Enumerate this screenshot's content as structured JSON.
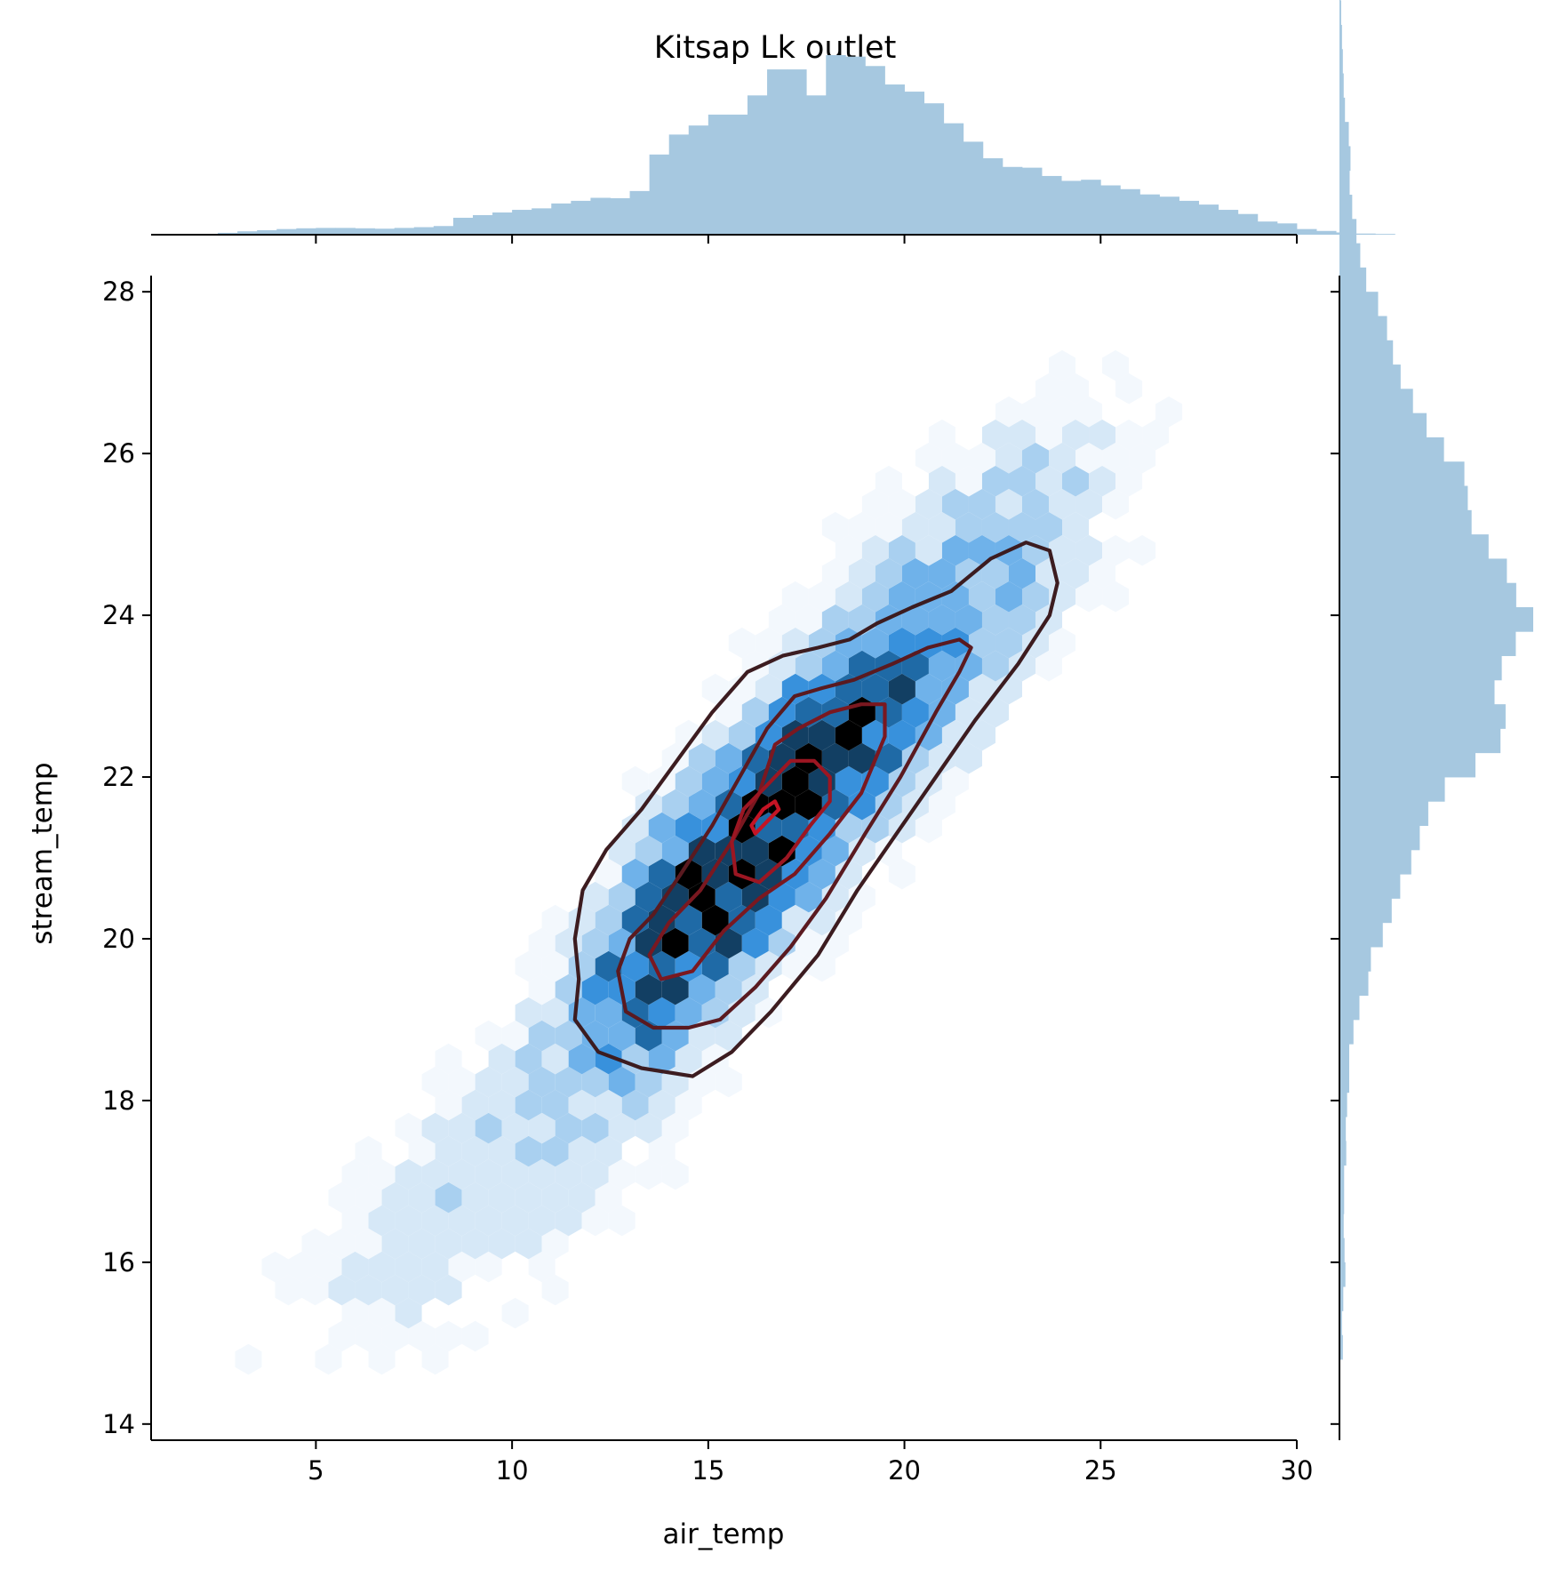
{
  "chart_data": {
    "type": "jointplot",
    "title": "Kitsap Lk outlet",
    "xlabel": "air_temp",
    "ylabel": "stream_temp",
    "xlim": [
      0.8,
      30
    ],
    "ylim": [
      13.8,
      28.2
    ],
    "xticks": [
      5,
      10,
      15,
      20,
      25,
      30
    ],
    "yticks": [
      14,
      16,
      18,
      20,
      22,
      24,
      26,
      28
    ],
    "grid": false,
    "legend": "none",
    "colors": {
      "marginal_hist": "#a6c8e0",
      "hexbin_scale": [
        "#f3f8fd",
        "#d6e8f7",
        "#a9d0f0",
        "#6fb2ea",
        "#3891dc",
        "#1f6aa6",
        "#123f63",
        "#000000"
      ],
      "kde_contours": [
        "#3c1c20",
        "#5a1a20",
        "#7a1820",
        "#9c1622",
        "#c41424"
      ],
      "axis": "#000000"
    },
    "hexbin": {
      "gridsize_x": 0.68,
      "weighted_clusters": [
        {
          "x": 16.4,
          "y": 21.4,
          "sx": 2.3,
          "sy": 1.3,
          "rho": 0.82,
          "weight": 1.0
        },
        {
          "x": 14.3,
          "y": 19.9,
          "sx": 1.4,
          "sy": 0.9,
          "rho": 0.6,
          "weight": 0.55
        },
        {
          "x": 19.5,
          "y": 23.0,
          "sx": 2.6,
          "sy": 1.3,
          "rho": 0.78,
          "weight": 0.35
        },
        {
          "x": 10.5,
          "y": 17.5,
          "sx": 3.3,
          "sy": 1.5,
          "rho": 0.8,
          "weight": 0.14
        },
        {
          "x": 22.0,
          "y": 25.2,
          "sx": 2.6,
          "sy": 1.1,
          "rho": 0.7,
          "weight": 0.09
        }
      ]
    },
    "kde_contours": [
      {
        "level": 1,
        "points": [
          [
            11.7,
            19.5
          ],
          [
            11.6,
            19.0
          ],
          [
            12.2,
            18.6
          ],
          [
            13.3,
            18.4
          ],
          [
            14.6,
            18.3
          ],
          [
            15.6,
            18.6
          ],
          [
            16.6,
            19.1
          ],
          [
            17.8,
            19.8
          ],
          [
            18.8,
            20.6
          ],
          [
            19.8,
            21.3
          ],
          [
            20.8,
            22.0
          ],
          [
            21.8,
            22.7
          ],
          [
            22.9,
            23.4
          ],
          [
            23.7,
            24.0
          ],
          [
            23.9,
            24.4
          ],
          [
            23.7,
            24.8
          ],
          [
            23.1,
            24.9
          ],
          [
            22.2,
            24.7
          ],
          [
            21.2,
            24.3
          ],
          [
            20.2,
            24.1
          ],
          [
            19.3,
            23.9
          ],
          [
            18.6,
            23.7
          ],
          [
            17.8,
            23.6
          ],
          [
            16.9,
            23.5
          ],
          [
            16.0,
            23.3
          ],
          [
            15.1,
            22.8
          ],
          [
            14.2,
            22.2
          ],
          [
            13.3,
            21.6
          ],
          [
            12.4,
            21.1
          ],
          [
            11.8,
            20.6
          ],
          [
            11.6,
            20.0
          ],
          [
            11.7,
            19.5
          ]
        ]
      },
      {
        "level": 2,
        "points": [
          [
            12.7,
            19.6
          ],
          [
            12.9,
            19.1
          ],
          [
            13.6,
            18.9
          ],
          [
            14.5,
            18.9
          ],
          [
            15.3,
            19.0
          ],
          [
            16.2,
            19.4
          ],
          [
            17.1,
            19.9
          ],
          [
            18.0,
            20.5
          ],
          [
            19.0,
            21.3
          ],
          [
            19.9,
            22.0
          ],
          [
            20.8,
            22.8
          ],
          [
            21.4,
            23.3
          ],
          [
            21.7,
            23.6
          ],
          [
            21.4,
            23.7
          ],
          [
            20.6,
            23.6
          ],
          [
            19.7,
            23.4
          ],
          [
            18.7,
            23.2
          ],
          [
            17.9,
            23.1
          ],
          [
            17.2,
            23.0
          ],
          [
            16.5,
            22.6
          ],
          [
            15.8,
            22.0
          ],
          [
            15.1,
            21.4
          ],
          [
            14.3,
            20.8
          ],
          [
            13.6,
            20.3
          ],
          [
            13.0,
            20.0
          ],
          [
            12.7,
            19.6
          ]
        ]
      },
      {
        "level": 3,
        "points": [
          [
            13.5,
            19.8
          ],
          [
            13.8,
            19.5
          ],
          [
            14.6,
            19.6
          ],
          [
            15.4,
            20.1
          ],
          [
            16.3,
            20.5
          ],
          [
            17.2,
            20.8
          ],
          [
            18.1,
            21.3
          ],
          [
            18.9,
            21.8
          ],
          [
            19.5,
            22.5
          ],
          [
            19.5,
            22.9
          ],
          [
            18.9,
            22.9
          ],
          [
            18.1,
            22.8
          ],
          [
            17.3,
            22.6
          ],
          [
            16.7,
            22.4
          ],
          [
            16.3,
            21.8
          ],
          [
            15.6,
            21.2
          ],
          [
            14.8,
            20.6
          ],
          [
            14.0,
            20.2
          ],
          [
            13.5,
            19.8
          ]
        ]
      },
      {
        "level": 4,
        "points": [
          [
            15.6,
            21.2
          ],
          [
            15.7,
            20.8
          ],
          [
            16.3,
            20.7
          ],
          [
            17.0,
            21.0
          ],
          [
            17.6,
            21.4
          ],
          [
            18.1,
            21.7
          ],
          [
            18.1,
            22.0
          ],
          [
            17.7,
            22.2
          ],
          [
            17.1,
            22.2
          ],
          [
            16.5,
            21.9
          ],
          [
            15.9,
            21.6
          ],
          [
            15.6,
            21.2
          ]
        ]
      },
      {
        "level": 5,
        "points": [
          [
            16.1,
            21.4
          ],
          [
            16.2,
            21.3
          ],
          [
            16.6,
            21.5
          ],
          [
            16.8,
            21.6
          ],
          [
            16.7,
            21.7
          ],
          [
            16.4,
            21.6
          ],
          [
            16.1,
            21.4
          ]
        ]
      }
    ],
    "marginal_x_hist": {
      "bin_edges_start": 2.5,
      "bin_width": 0.5,
      "counts": [
        0.5,
        0.9,
        1.2,
        1.5,
        1.7,
        1.8,
        1.8,
        1.7,
        1.6,
        1.8,
        2.0,
        2.3,
        4.5,
        5.2,
        5.9,
        6.6,
        7.0,
        8.3,
        9.0,
        9.8,
        9.7,
        11.6,
        21.3,
        26.6,
        29.0,
        31.9,
        31.9,
        37.0,
        43.9,
        43.9,
        37.0,
        47.7,
        47.3,
        44.8,
        39.9,
        38.0,
        34.9,
        29.6,
        24.7,
        20.3,
        18.0,
        17.8,
        15.6,
        14.3,
        14.6,
        13.1,
        12.1,
        10.7,
        10.1,
        9.0,
        8.0,
        6.6,
        5.5,
        3.5,
        3.0,
        1.5,
        1.0,
        0.6,
        0.3,
        0.2
      ]
    },
    "marginal_y_hist": {
      "bin_edges_start": 14.8,
      "bin_width": 0.3,
      "counts": [
        0.8,
        0.6,
        0.9,
        1.4,
        1.2,
        1.0,
        1.1,
        1.1,
        1.6,
        1.5,
        1.8,
        2.3,
        2.3,
        3.3,
        4.7,
        6.8,
        7.4,
        10.2,
        12.3,
        14.3,
        16.9,
        18.9,
        20.9,
        24.8,
        32.0,
        37.9,
        39.1,
        36.5,
        38.2,
        41.5,
        45.6,
        41.6,
        39.4,
        35.1,
        31.1,
        30.2,
        29.4,
        24.6,
        20.5,
        17.3,
        14.4,
        12.6,
        11.2,
        9.1,
        6.3,
        4.9,
        4.0,
        3.0,
        2.4,
        2.6,
        2.2,
        1.3,
        1.0,
        0.8,
        0.6,
        0.4,
        0.3,
        0.2,
        0.1,
        0.1,
        0.05,
        0.05,
        0.02,
        0.02
      ]
    }
  }
}
